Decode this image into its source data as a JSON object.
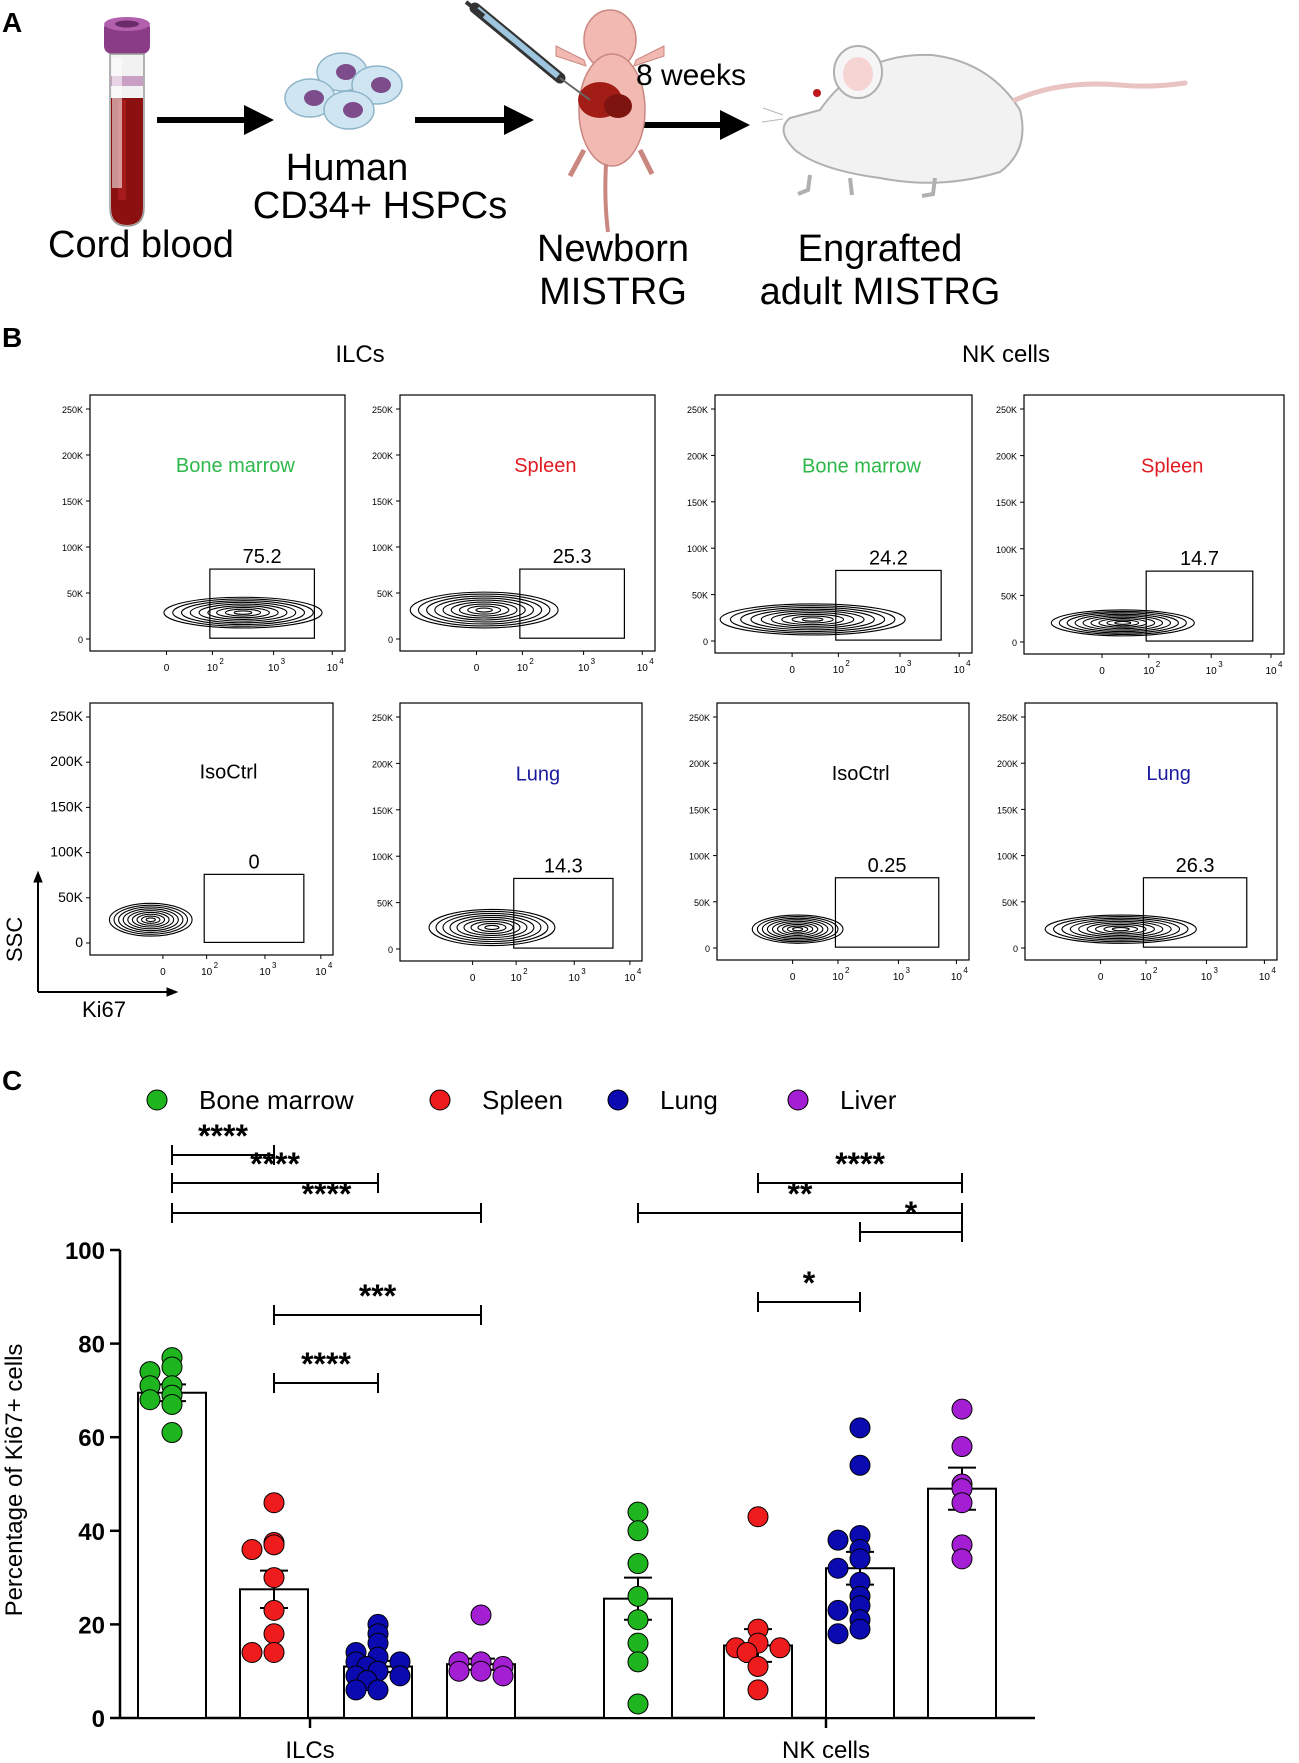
{
  "panel_a": {
    "label": "A",
    "steps": {
      "cord_blood": "Cord blood",
      "hspcs_line1": "Human",
      "hspcs_line2": "CD34+ HSPCs",
      "newborn_line1": "Newborn",
      "newborn_line2": "MISTRG",
      "weeks": "8 weeks",
      "adult_line1": "Engrafted",
      "adult_line2": "adult MISTRG"
    }
  },
  "panel_b": {
    "label": "B",
    "group_titles": [
      "ILCs",
      "NK cells"
    ],
    "y_ticks": [
      "250K",
      "200K",
      "150K",
      "100K",
      "50K",
      "0"
    ],
    "x_ticks": [
      "0",
      "10",
      "10",
      "10"
    ],
    "x_exps": [
      "2",
      "3",
      "4"
    ],
    "axis_y": "SSC",
    "axis_x": "Ki67",
    "plots": [
      {
        "group": "ILCs",
        "tissue": "Bone marrow",
        "color": "#2db84a",
        "gate": "75.2"
      },
      {
        "group": "ILCs",
        "tissue": "Spleen",
        "color": "#e11b22",
        "gate": "25.3"
      },
      {
        "group": "NK cells",
        "tissue": "Bone marrow",
        "color": "#2db84a",
        "gate": "24.2"
      },
      {
        "group": "NK cells",
        "tissue": "Spleen",
        "color": "#e11b22",
        "gate": "14.7"
      },
      {
        "group": "ILCs",
        "tissue": "IsoCtrl",
        "color": "#000000",
        "gate": "0"
      },
      {
        "group": "ILCs",
        "tissue": "Lung",
        "color": "#1a1a9c",
        "gate": "14.3"
      },
      {
        "group": "NK cells",
        "tissue": "IsoCtrl",
        "color": "#000000",
        "gate": "0.25"
      },
      {
        "group": "NK cells",
        "tissue": "Lung",
        "color": "#1a1a9c",
        "gate": "26.3"
      }
    ]
  },
  "panel_c": {
    "label": "C",
    "legend": [
      {
        "name": "Bone marrow",
        "color": "#1fb51f"
      },
      {
        "name": "Spleen",
        "color": "#ee1c1c"
      },
      {
        "name": "Lung",
        "color": "#0a0ab0"
      },
      {
        "name": "Liver",
        "color": "#a41fd4"
      }
    ],
    "sig_labels": {
      "i1": "****",
      "i2": "****",
      "i3": "****",
      "i4": "***",
      "i5": "****",
      "n1": "**",
      "n2": "****",
      "n3": "*",
      "n4": "*"
    }
  },
  "chart_data": {
    "type": "bar",
    "title": "",
    "xlabel": "",
    "ylabel": "Percentage of Ki67+ cells",
    "ylim": [
      0,
      100
    ],
    "yticks": [
      0,
      20,
      40,
      60,
      80,
      100
    ],
    "categories": [
      "ILCs",
      "NK cells"
    ],
    "series": [
      {
        "name": "Bone marrow",
        "color": "#1fb51f",
        "values": [
          69.5,
          25.5
        ],
        "sem": [
          1.8,
          4.5
        ],
        "points": [
          [
            77,
            75,
            74,
            71,
            71,
            69,
            68,
            67,
            61
          ],
          [
            44,
            40,
            33,
            26,
            21,
            16,
            12,
            3
          ]
        ]
      },
      {
        "name": "Spleen",
        "color": "#ee1c1c",
        "values": [
          27.5,
          15.5
        ],
        "sem": [
          4.0,
          3.5
        ],
        "points": [
          [
            46,
            37.5,
            37,
            36,
            30,
            23,
            18,
            14,
            14
          ],
          [
            43,
            19,
            16,
            15,
            15,
            14,
            11,
            6
          ]
        ]
      },
      {
        "name": "Lung",
        "color": "#0a0ab0",
        "values": [
          11,
          32
        ],
        "sem": [
          1.2,
          3.5
        ],
        "points": [
          [
            20,
            18,
            16,
            14,
            13,
            12,
            12,
            11,
            10,
            9,
            9,
            8,
            6,
            6
          ],
          [
            62,
            54,
            39,
            38,
            36,
            34,
            32,
            29,
            26,
            24,
            23,
            21,
            19,
            18
          ]
        ]
      },
      {
        "name": "Liver",
        "color": "#a41fd4",
        "values": [
          11.5,
          49
        ],
        "sem": [
          1.2,
          4.5
        ],
        "points": [
          [
            22,
            12,
            12,
            11,
            10,
            10,
            9
          ],
          [
            66,
            58,
            50,
            49,
            46,
            37,
            34
          ]
        ]
      }
    ],
    "significance": [
      {
        "group": "ILCs",
        "from": "Bone marrow",
        "to": "Liver",
        "label": "****"
      },
      {
        "group": "ILCs",
        "from": "Bone marrow",
        "to": "Lung",
        "label": "****"
      },
      {
        "group": "ILCs",
        "from": "Bone marrow",
        "to": "Spleen",
        "label": "****"
      },
      {
        "group": "ILCs",
        "from": "Spleen",
        "to": "Liver",
        "label": "***"
      },
      {
        "group": "ILCs",
        "from": "Spleen",
        "to": "Lung",
        "label": "****"
      },
      {
        "group": "NK cells",
        "from": "Bone marrow",
        "to": "Liver",
        "label": "**"
      },
      {
        "group": "NK cells",
        "from": "Spleen",
        "to": "Liver",
        "label": "****"
      },
      {
        "group": "NK cells",
        "from": "Lung",
        "to": "Liver",
        "label": "*"
      },
      {
        "group": "NK cells",
        "from": "Spleen",
        "to": "Lung",
        "label": "*"
      }
    ]
  }
}
